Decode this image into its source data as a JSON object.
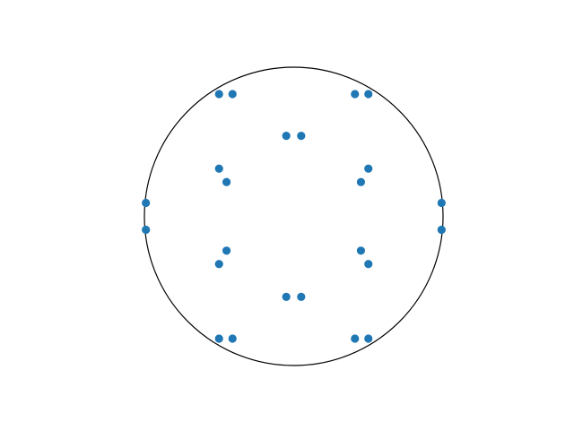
{
  "chart_data": {
    "type": "scatter",
    "title": "",
    "xlabel": "",
    "ylabel": "",
    "axes_visible": false,
    "aspect": "equal",
    "xlim": [
      -1.05,
      1.05
    ],
    "ylim": [
      -1.05,
      1.05
    ],
    "grid": false,
    "legend": "none",
    "circle": {
      "center": [
        0,
        0
      ],
      "radius": 1,
      "color": "#000000"
    },
    "series": [
      {
        "marker_color": "#1f77b4",
        "points": [
          [
            -0.5,
            0.82
          ],
          [
            -0.41,
            0.82
          ],
          [
            0.41,
            0.82
          ],
          [
            0.5,
            0.82
          ],
          [
            -0.05,
            0.54
          ],
          [
            0.05,
            0.54
          ],
          [
            -0.5,
            0.32
          ],
          [
            -0.45,
            0.23
          ],
          [
            0.45,
            0.23
          ],
          [
            0.5,
            0.32
          ],
          [
            -0.99,
            0.09
          ],
          [
            -0.99,
            -0.09
          ],
          [
            0.99,
            0.09
          ],
          [
            0.99,
            -0.09
          ],
          [
            -0.5,
            -0.32
          ],
          [
            -0.45,
            -0.23
          ],
          [
            0.45,
            -0.23
          ],
          [
            0.5,
            -0.32
          ],
          [
            -0.05,
            -0.54
          ],
          [
            0.05,
            -0.54
          ],
          [
            -0.5,
            -0.82
          ],
          [
            -0.41,
            -0.82
          ],
          [
            0.41,
            -0.82
          ],
          [
            0.5,
            -0.82
          ]
        ]
      }
    ]
  }
}
